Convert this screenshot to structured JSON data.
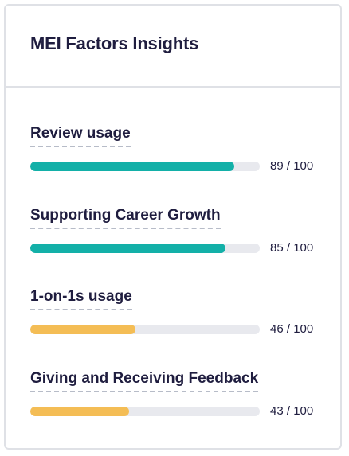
{
  "card": {
    "title": "MEI Factors Insights"
  },
  "colors": {
    "high": "#13b0a8",
    "medium": "#f4bd55",
    "track": "#e8e9ee"
  },
  "factors": [
    {
      "label": "Review usage",
      "score": "89",
      "max": "100",
      "level": "high"
    },
    {
      "label": "Supporting Career Growth",
      "score": "85",
      "max": "100",
      "level": "high"
    },
    {
      "label": "1-on-1s usage",
      "score": "46",
      "max": "100",
      "level": "medium"
    },
    {
      "label": "Giving and Receiving Feedback",
      "score": "43",
      "max": "100",
      "level": "medium"
    }
  ]
}
